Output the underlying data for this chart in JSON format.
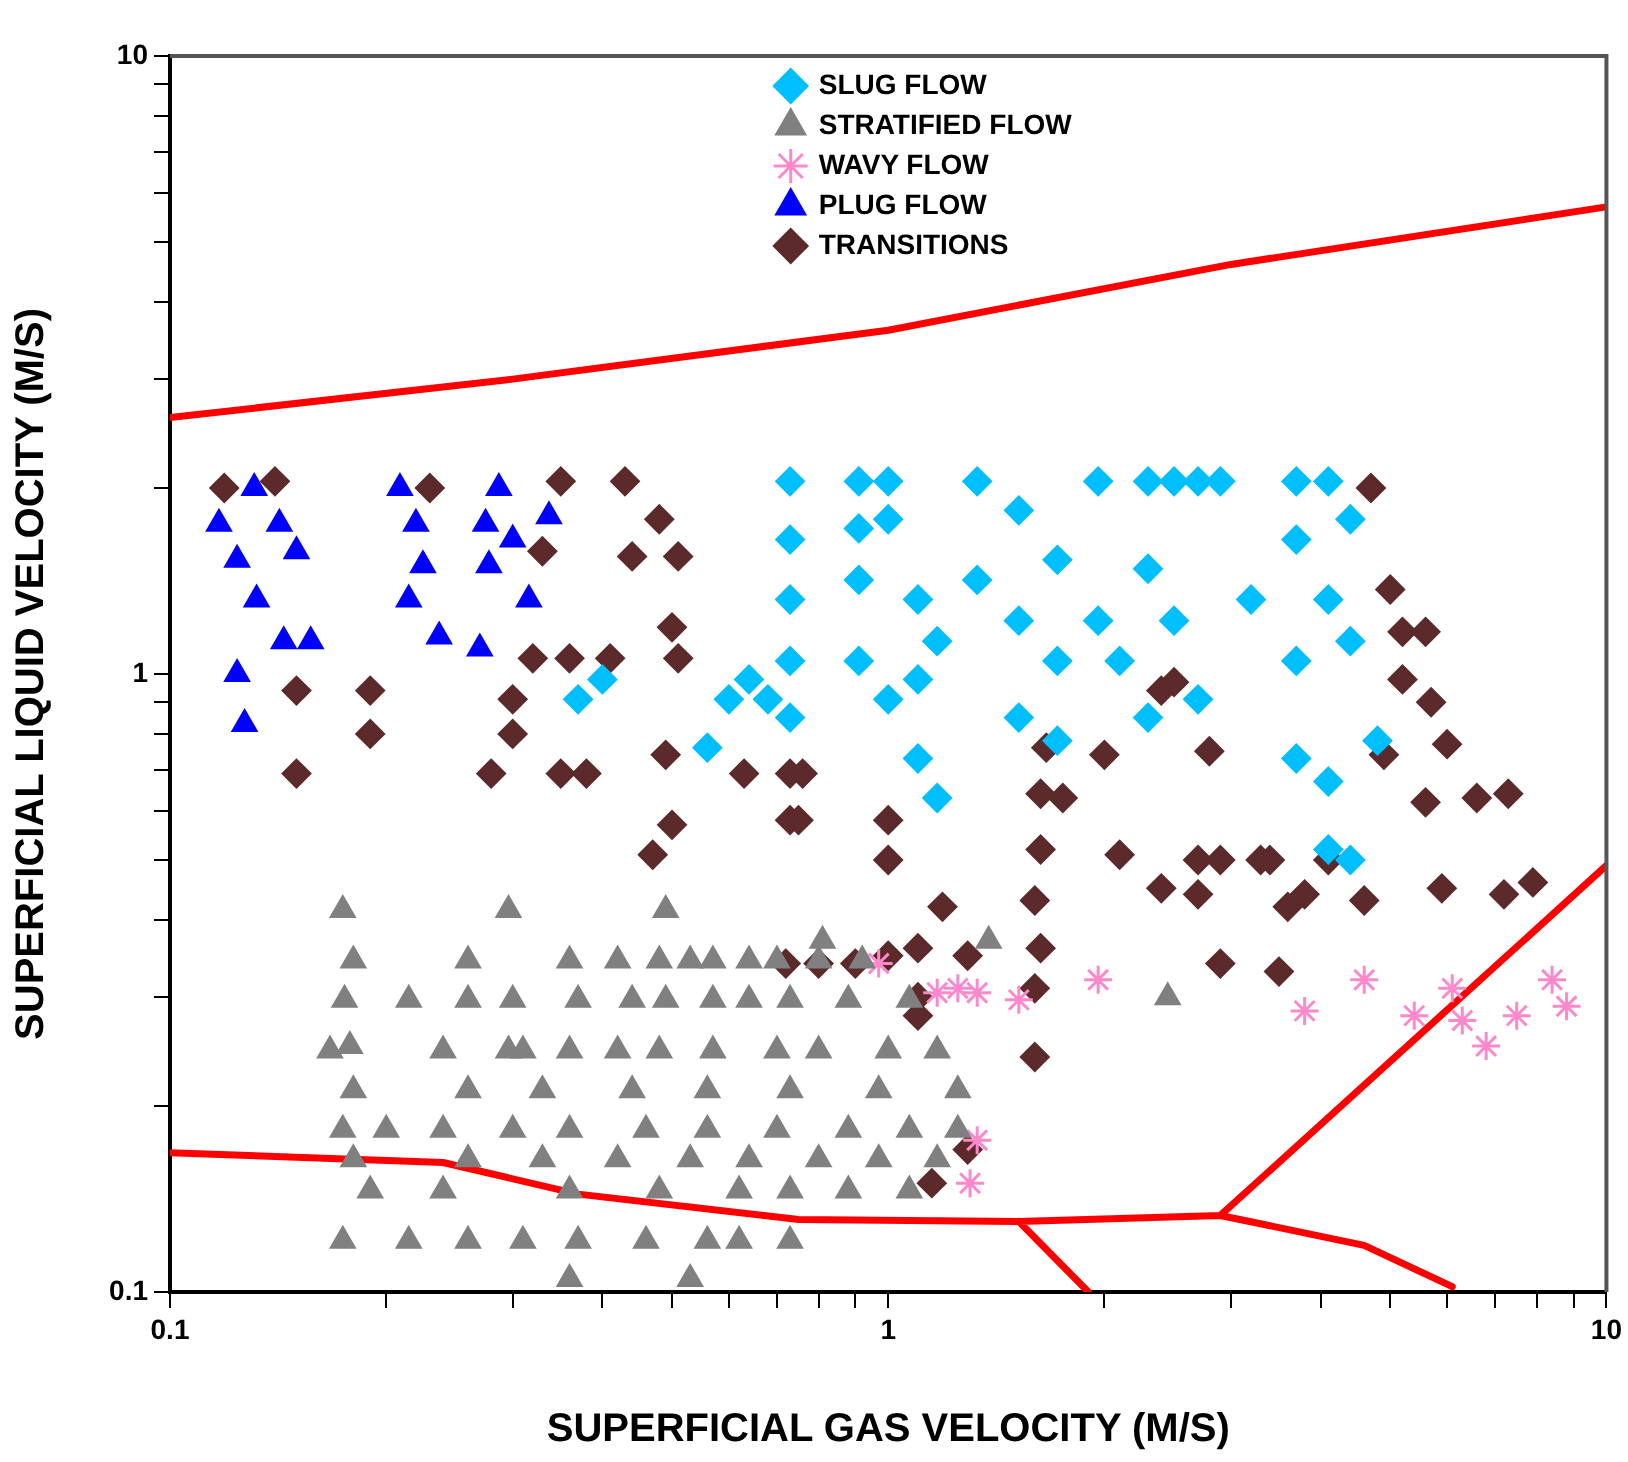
{
  "chart_data": {
    "type": "scatter",
    "xlabel": "SUPERFICIAL GAS VELOCITY (M/S)",
    "ylabel": "SUPERFICIAL LIQUID VELOCITY (M/S)",
    "log": "xy",
    "grid": false,
    "legend": "top",
    "xlim": [
      0.1,
      10
    ],
    "ylim": [
      0.1,
      10
    ],
    "xticks": [
      0.1,
      {
        "value": 0.2,
        "label": null
      },
      {
        "value": 0.3,
        "label": null
      },
      {
        "value": 0.4,
        "label": null
      },
      {
        "value": 0.5,
        "label": null
      },
      {
        "value": 0.6,
        "label": null
      },
      {
        "value": 0.7,
        "label": null
      },
      {
        "value": 0.8,
        "label": null
      },
      {
        "value": 0.9,
        "label": null
      },
      1,
      {
        "value": 2,
        "label": null
      },
      {
        "value": 3,
        "label": null
      },
      {
        "value": 4,
        "label": null
      },
      {
        "value": 5,
        "label": null
      },
      {
        "value": 6,
        "label": null
      },
      {
        "value": 7,
        "label": null
      },
      {
        "value": 8,
        "label": null
      },
      {
        "value": 9,
        "label": null
      },
      10
    ],
    "yticks": [
      0.1,
      {
        "value": 0.2,
        "label": null
      },
      {
        "value": 0.3,
        "label": null
      },
      {
        "value": 0.4,
        "label": null
      },
      {
        "value": 0.5,
        "label": null
      },
      {
        "value": 0.6,
        "label": null
      },
      {
        "value": 0.7,
        "label": null
      },
      {
        "value": 0.8,
        "label": null
      },
      {
        "value": 0.9,
        "label": null
      },
      1,
      {
        "value": 2,
        "label": null
      },
      {
        "value": 3,
        "label": null
      },
      {
        "value": 4,
        "label": null
      },
      {
        "value": 5,
        "label": null
      },
      {
        "value": 6,
        "label": null
      },
      {
        "value": 7,
        "label": null
      },
      {
        "value": 8,
        "label": null
      },
      {
        "value": 9,
        "label": null
      },
      10
    ],
    "series": [
      {
        "name": "SLUG FLOW",
        "color": "#00bfff",
        "marker": "diamond",
        "x": [
          0.37,
          0.4,
          0.56,
          0.6,
          0.64,
          0.68,
          0.73,
          0.73,
          0.73,
          0.73,
          0.73,
          0.91,
          0.91,
          0.91,
          0.91,
          1.0,
          1.0,
          1.0,
          1.1,
          1.1,
          1.1,
          1.17,
          1.17,
          1.33,
          1.33,
          1.52,
          1.52,
          1.52,
          1.72,
          1.72,
          1.72,
          1.96,
          1.96,
          2.1,
          2.3,
          2.3,
          2.3,
          2.5,
          2.5,
          2.7,
          2.7,
          2.9,
          3.2,
          3.7,
          3.7,
          3.7,
          3.7,
          4.1,
          4.1,
          4.1,
          4.1,
          4.4,
          4.4,
          4.8,
          4.4
        ],
        "values": [
          0.91,
          0.98,
          0.76,
          0.91,
          0.98,
          0.91,
          2.05,
          1.65,
          1.32,
          1.05,
          0.85,
          2.05,
          1.72,
          1.42,
          1.05,
          2.05,
          1.78,
          0.91,
          1.32,
          0.98,
          0.73,
          1.13,
          0.63,
          2.05,
          1.42,
          1.84,
          1.22,
          0.85,
          1.53,
          1.05,
          0.78,
          2.05,
          1.22,
          1.05,
          2.05,
          1.48,
          0.85,
          2.05,
          1.22,
          2.05,
          0.91,
          2.05,
          1.32,
          2.05,
          1.65,
          1.05,
          0.73,
          2.05,
          1.32,
          0.67,
          0.52,
          1.78,
          1.13,
          0.78,
          0.5
        ]
      },
      {
        "name": "STRATIFIED FLOW",
        "color": "#808080",
        "marker": "triangle",
        "x": [
          0.174,
          0.296,
          0.49,
          0.18,
          0.26,
          0.36,
          0.42,
          0.48,
          0.53,
          0.57,
          0.64,
          0.7,
          0.8,
          0.92,
          0.175,
          0.215,
          0.26,
          0.3,
          0.37,
          0.44,
          0.49,
          0.57,
          0.64,
          0.73,
          0.88,
          1.07,
          2.45,
          0.81,
          1.38,
          0.167,
          0.178,
          0.24,
          0.296,
          0.31,
          0.36,
          0.42,
          0.48,
          0.57,
          0.7,
          0.8,
          1.0,
          1.17,
          0.18,
          0.26,
          0.33,
          0.44,
          0.56,
          0.73,
          0.97,
          1.25,
          0.174,
          0.2,
          0.24,
          0.3,
          0.36,
          0.46,
          0.56,
          0.7,
          0.88,
          1.07,
          1.25,
          0.18,
          0.26,
          0.33,
          0.42,
          0.53,
          0.64,
          0.8,
          0.97,
          1.17,
          0.19,
          0.24,
          0.36,
          0.48,
          0.62,
          0.73,
          0.88,
          1.07,
          0.174,
          0.215,
          0.26,
          0.31,
          0.37,
          0.46,
          0.56,
          0.62,
          0.73,
          0.36,
          0.53
        ],
        "values": [
          0.415,
          0.415,
          0.415,
          0.344,
          0.344,
          0.344,
          0.344,
          0.344,
          0.344,
          0.344,
          0.344,
          0.344,
          0.344,
          0.344,
          0.297,
          0.297,
          0.297,
          0.297,
          0.297,
          0.297,
          0.297,
          0.297,
          0.297,
          0.297,
          0.297,
          0.297,
          0.3,
          0.37,
          0.37,
          0.246,
          0.25,
          0.246,
          0.246,
          0.246,
          0.246,
          0.246,
          0.246,
          0.246,
          0.246,
          0.246,
          0.246,
          0.246,
          0.212,
          0.212,
          0.212,
          0.212,
          0.212,
          0.212,
          0.212,
          0.212,
          0.183,
          0.183,
          0.183,
          0.183,
          0.183,
          0.183,
          0.183,
          0.183,
          0.183,
          0.183,
          0.183,
          0.164,
          0.164,
          0.164,
          0.164,
          0.164,
          0.164,
          0.164,
          0.164,
          0.164,
          0.146,
          0.146,
          0.146,
          0.146,
          0.146,
          0.146,
          0.146,
          0.146,
          0.121,
          0.121,
          0.121,
          0.121,
          0.121,
          0.121,
          0.121,
          0.121,
          0.121,
          0.105,
          0.105
        ]
      },
      {
        "name": "WAVY FLOW",
        "color": "#ff88cc",
        "marker": "cross",
        "x": [
          0.97,
          1.17,
          1.25,
          1.33,
          1.52,
          1.96,
          3.8,
          4.6,
          5.4,
          6.1,
          6.3,
          6.8,
          7.5,
          8.4,
          8.8,
          1.33,
          1.3
        ],
        "values": [
          0.34,
          0.305,
          0.31,
          0.305,
          0.297,
          0.32,
          0.285,
          0.32,
          0.28,
          0.31,
          0.275,
          0.25,
          0.28,
          0.32,
          0.29,
          0.176,
          0.15
        ]
      },
      {
        "name": "PLUG FLOW",
        "color": "#0000ff",
        "marker": "triangle",
        "x": [
          0.117,
          0.131,
          0.142,
          0.15,
          0.124,
          0.132,
          0.144,
          0.157,
          0.124,
          0.127,
          0.209,
          0.22,
          0.225,
          0.215,
          0.237,
          0.27,
          0.287,
          0.275,
          0.3,
          0.278,
          0.316,
          0.337
        ],
        "values": [
          1.75,
          2.0,
          1.75,
          1.58,
          1.53,
          1.32,
          1.13,
          1.13,
          1.0,
          0.83,
          2.0,
          1.75,
          1.5,
          1.32,
          1.15,
          1.1,
          2.0,
          1.75,
          1.65,
          1.5,
          1.32,
          1.8
        ]
      },
      {
        "name": "TRANSITIONS",
        "color": "#5c2a2a",
        "marker": "diamond",
        "x": [
          0.119,
          0.14,
          0.23,
          0.35,
          0.33,
          0.43,
          0.48,
          0.51,
          0.44,
          0.5,
          0.36,
          0.32,
          0.41,
          0.51,
          0.15,
          0.19,
          0.19,
          0.15,
          0.3,
          0.3,
          0.28,
          0.35,
          0.38,
          0.49,
          0.5,
          0.47,
          0.63,
          0.73,
          0.73,
          0.72,
          0.8,
          0.9,
          0.76,
          0.75,
          1.0,
          1.0,
          1.0,
          1.1,
          1.1,
          1.1,
          1.19,
          1.29,
          1.29,
          1.15,
          1.6,
          1.6,
          1.63,
          1.6,
          1.63,
          1.63,
          1.66,
          2.0,
          1.75,
          2.1,
          2.4,
          2.7,
          2.7,
          2.9,
          3.3,
          3.4,
          4.1,
          4.6,
          3.8,
          3.6,
          2.9,
          3.5,
          2.8,
          2.4,
          2.5,
          5.2,
          5.7,
          4.9,
          6.0,
          5.6,
          6.6,
          7.3,
          5.9,
          7.2,
          7.9,
          4.7,
          5.0,
          5.2,
          5.6
        ],
        "values": [
          2.0,
          2.05,
          2.0,
          2.05,
          1.58,
          2.05,
          1.78,
          1.55,
          1.55,
          1.19,
          1.06,
          1.06,
          1.06,
          1.06,
          0.94,
          0.94,
          0.8,
          0.69,
          0.91,
          0.8,
          0.69,
          0.69,
          0.69,
          0.74,
          0.57,
          0.51,
          0.69,
          0.69,
          0.58,
          0.34,
          0.34,
          0.34,
          0.69,
          0.58,
          0.58,
          0.5,
          0.35,
          0.36,
          0.28,
          0.3,
          0.42,
          0.35,
          0.17,
          0.15,
          0.24,
          0.31,
          0.36,
          0.43,
          0.52,
          0.64,
          0.76,
          0.74,
          0.63,
          0.51,
          0.45,
          0.5,
          0.44,
          0.5,
          0.5,
          0.5,
          0.5,
          0.43,
          0.44,
          0.42,
          0.34,
          0.33,
          0.75,
          0.94,
          0.97,
          0.98,
          0.9,
          0.74,
          0.77,
          0.62,
          0.63,
          0.64,
          0.45,
          0.44,
          0.46,
          2.0,
          1.37,
          1.17,
          1.17
        ]
      },
      {
        "type": "line",
        "color": "#ff0000",
        "marker": "none",
        "line_style": "solid",
        "x": [
          0.1,
          0.3,
          1,
          3,
          10
        ],
        "values": [
          2.6,
          3.0,
          3.6,
          4.6,
          5.7
        ]
      },
      {
        "type": "line",
        "color": "#ff0000",
        "marker": "none",
        "line_style": "solid",
        "x": [
          0.1,
          0.24,
          0.37,
          0.75,
          1.52,
          2.9,
          4.6,
          6.1,
          null,
          2.9,
          10,
          null,
          1.52,
          1.9
        ],
        "values": [
          0.168,
          0.162,
          0.144,
          0.131,
          0.13,
          0.133,
          0.119,
          0.102,
          null,
          0.133,
          0.49,
          null,
          0.13,
          0.1
        ]
      }
    ]
  }
}
